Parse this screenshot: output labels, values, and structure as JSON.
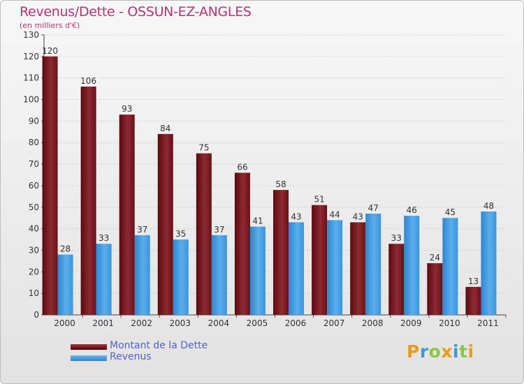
{
  "title": "Revenus/Dette - OSSUN-EZ-ANGLES",
  "subtitle": "(en milliers d'€)",
  "colors": {
    "series_1": "#6b0f14",
    "series_2": "#3b97e0",
    "title": "#b0357a",
    "legend_text": "#5560c8"
  },
  "brand": {
    "letters": [
      "P",
      "r",
      "o",
      "x",
      "i",
      "t",
      "i"
    ],
    "colors": [
      "#e89a1a",
      "#3c9ad7",
      "#8cc63f",
      "#e89a1a",
      "#3c9ad7",
      "#8cc63f",
      "#e89a1a"
    ]
  },
  "chart_data": {
    "type": "bar",
    "categories": [
      "2000",
      "2001",
      "2002",
      "2003",
      "2004",
      "2005",
      "2006",
      "2007",
      "2008",
      "2009",
      "2010",
      "2011"
    ],
    "series": [
      {
        "name": "Montant de la Dette",
        "values": [
          120,
          106,
          93,
          84,
          75,
          66,
          58,
          51,
          43,
          33,
          24,
          13
        ]
      },
      {
        "name": "Revenus",
        "values": [
          28,
          33,
          37,
          35,
          37,
          41,
          43,
          44,
          47,
          46,
          45,
          48
        ]
      }
    ],
    "ylim": [
      0,
      130
    ],
    "yticks": [
      0,
      10,
      20,
      30,
      40,
      50,
      60,
      70,
      80,
      90,
      100,
      110,
      120,
      130
    ],
    "grid": true,
    "legend_position": "bottom-left"
  }
}
